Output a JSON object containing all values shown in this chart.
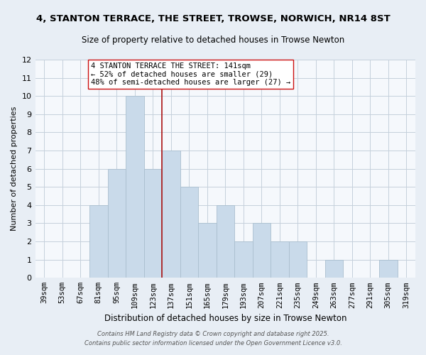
{
  "title": "4, STANTON TERRACE, THE STREET, TROWSE, NORWICH, NR14 8ST",
  "subtitle": "Size of property relative to detached houses in Trowse Newton",
  "xlabel": "Distribution of detached houses by size in Trowse Newton",
  "ylabel": "Number of detached properties",
  "bin_labels": [
    "39sqm",
    "53sqm",
    "67sqm",
    "81sqm",
    "95sqm",
    "109sqm",
    "123sqm",
    "137sqm",
    "151sqm",
    "165sqm",
    "179sqm",
    "193sqm",
    "207sqm",
    "221sqm",
    "235sqm",
    "249sqm",
    "263sqm",
    "277sqm",
    "291sqm",
    "305sqm",
    "319sqm"
  ],
  "bin_left_edges": [
    39,
    53,
    67,
    81,
    95,
    109,
    123,
    137,
    151,
    165,
    179,
    193,
    207,
    221,
    235,
    249,
    263,
    277,
    291,
    305,
    319
  ],
  "bin_width": 14,
  "counts": [
    0,
    0,
    0,
    4,
    6,
    10,
    6,
    7,
    5,
    3,
    4,
    2,
    3,
    2,
    2,
    0,
    1,
    0,
    0,
    1,
    0
  ],
  "bar_color": "#c9daea",
  "bar_edgecolor": "#aabfcf",
  "vline_x": 137,
  "vline_color": "#aa1111",
  "annotation_line1": "4 STANTON TERRACE THE STREET: 141sqm",
  "annotation_line2": "← 52% of detached houses are smaller (29)",
  "annotation_line3": "48% of semi-detached houses are larger (27) →",
  "annotation_box_edgecolor": "#cc1111",
  "ylim": [
    0,
    12
  ],
  "yticks": [
    0,
    1,
    2,
    3,
    4,
    5,
    6,
    7,
    8,
    9,
    10,
    11,
    12
  ],
  "footer_line1": "Contains HM Land Registry data © Crown copyright and database right 2025.",
  "footer_line2": "Contains public sector information licensed under the Open Government Licence v3.0.",
  "bg_color": "#e8eef5",
  "plot_bg_color": "#f5f8fc",
  "grid_color": "#c5d0dc",
  "title_fontsize": 9.5,
  "subtitle_fontsize": 8.5,
  "axis_label_fontsize": 8,
  "tick_fontsize": 7.5,
  "annotation_fontsize": 7.5,
  "footer_fontsize": 6.0
}
